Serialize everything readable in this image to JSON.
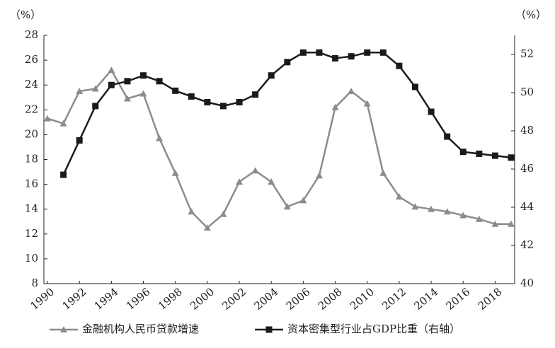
{
  "chart_data": {
    "type": "line",
    "y_label": "（%）",
    "y2_label": "（%）",
    "x": [
      1990,
      1991,
      1992,
      1993,
      1994,
      1995,
      1996,
      1997,
      1998,
      1999,
      2000,
      2001,
      2002,
      2003,
      2004,
      2005,
      2006,
      2007,
      2008,
      2009,
      2010,
      2011,
      2012,
      2013,
      2014,
      2015,
      2016,
      2017,
      2018,
      2019
    ],
    "xlim": [
      1990,
      2019
    ],
    "xticks": [
      1990,
      1992,
      1994,
      1996,
      1998,
      2000,
      2002,
      2004,
      2006,
      2008,
      2010,
      2012,
      2014,
      2016,
      2018
    ],
    "ylim": [
      8,
      28
    ],
    "yticks": [
      8,
      10,
      12,
      14,
      16,
      18,
      20,
      22,
      24,
      26,
      28
    ],
    "y2lim": [
      40,
      53
    ],
    "y2ticks": [
      40,
      42,
      44,
      46,
      48,
      50,
      52
    ],
    "grid": false,
    "legend": "bottom",
    "series": [
      {
        "name": "金融机构人民币贷款增速",
        "color": "#8c8c8c",
        "marker": "triangle",
        "values": [
          21.3,
          20.9,
          23.5,
          23.7,
          25.2,
          22.9,
          23.3,
          19.7,
          16.9,
          13.8,
          12.5,
          13.6,
          16.2,
          17.1,
          16.2,
          14.2,
          14.7,
          16.7,
          22.2,
          23.5,
          22.5,
          16.9,
          15.0,
          14.2,
          14.0,
          13.8,
          13.5,
          13.2,
          12.8,
          12.8
        ]
      },
      {
        "name": "资本密集型行业占GDP比重（右轴）",
        "color": "#1a1a1a",
        "marker": "square",
        "axis": "y2",
        "values": [
          null,
          45.7,
          47.5,
          49.3,
          50.4,
          50.6,
          50.9,
          50.6,
          50.1,
          49.8,
          49.5,
          49.3,
          49.5,
          49.9,
          50.9,
          51.6,
          52.1,
          52.1,
          51.8,
          51.9,
          52.1,
          52.1,
          51.4,
          50.3,
          49.0,
          47.7,
          46.9,
          46.8,
          46.7,
          46.6
        ]
      }
    ]
  }
}
